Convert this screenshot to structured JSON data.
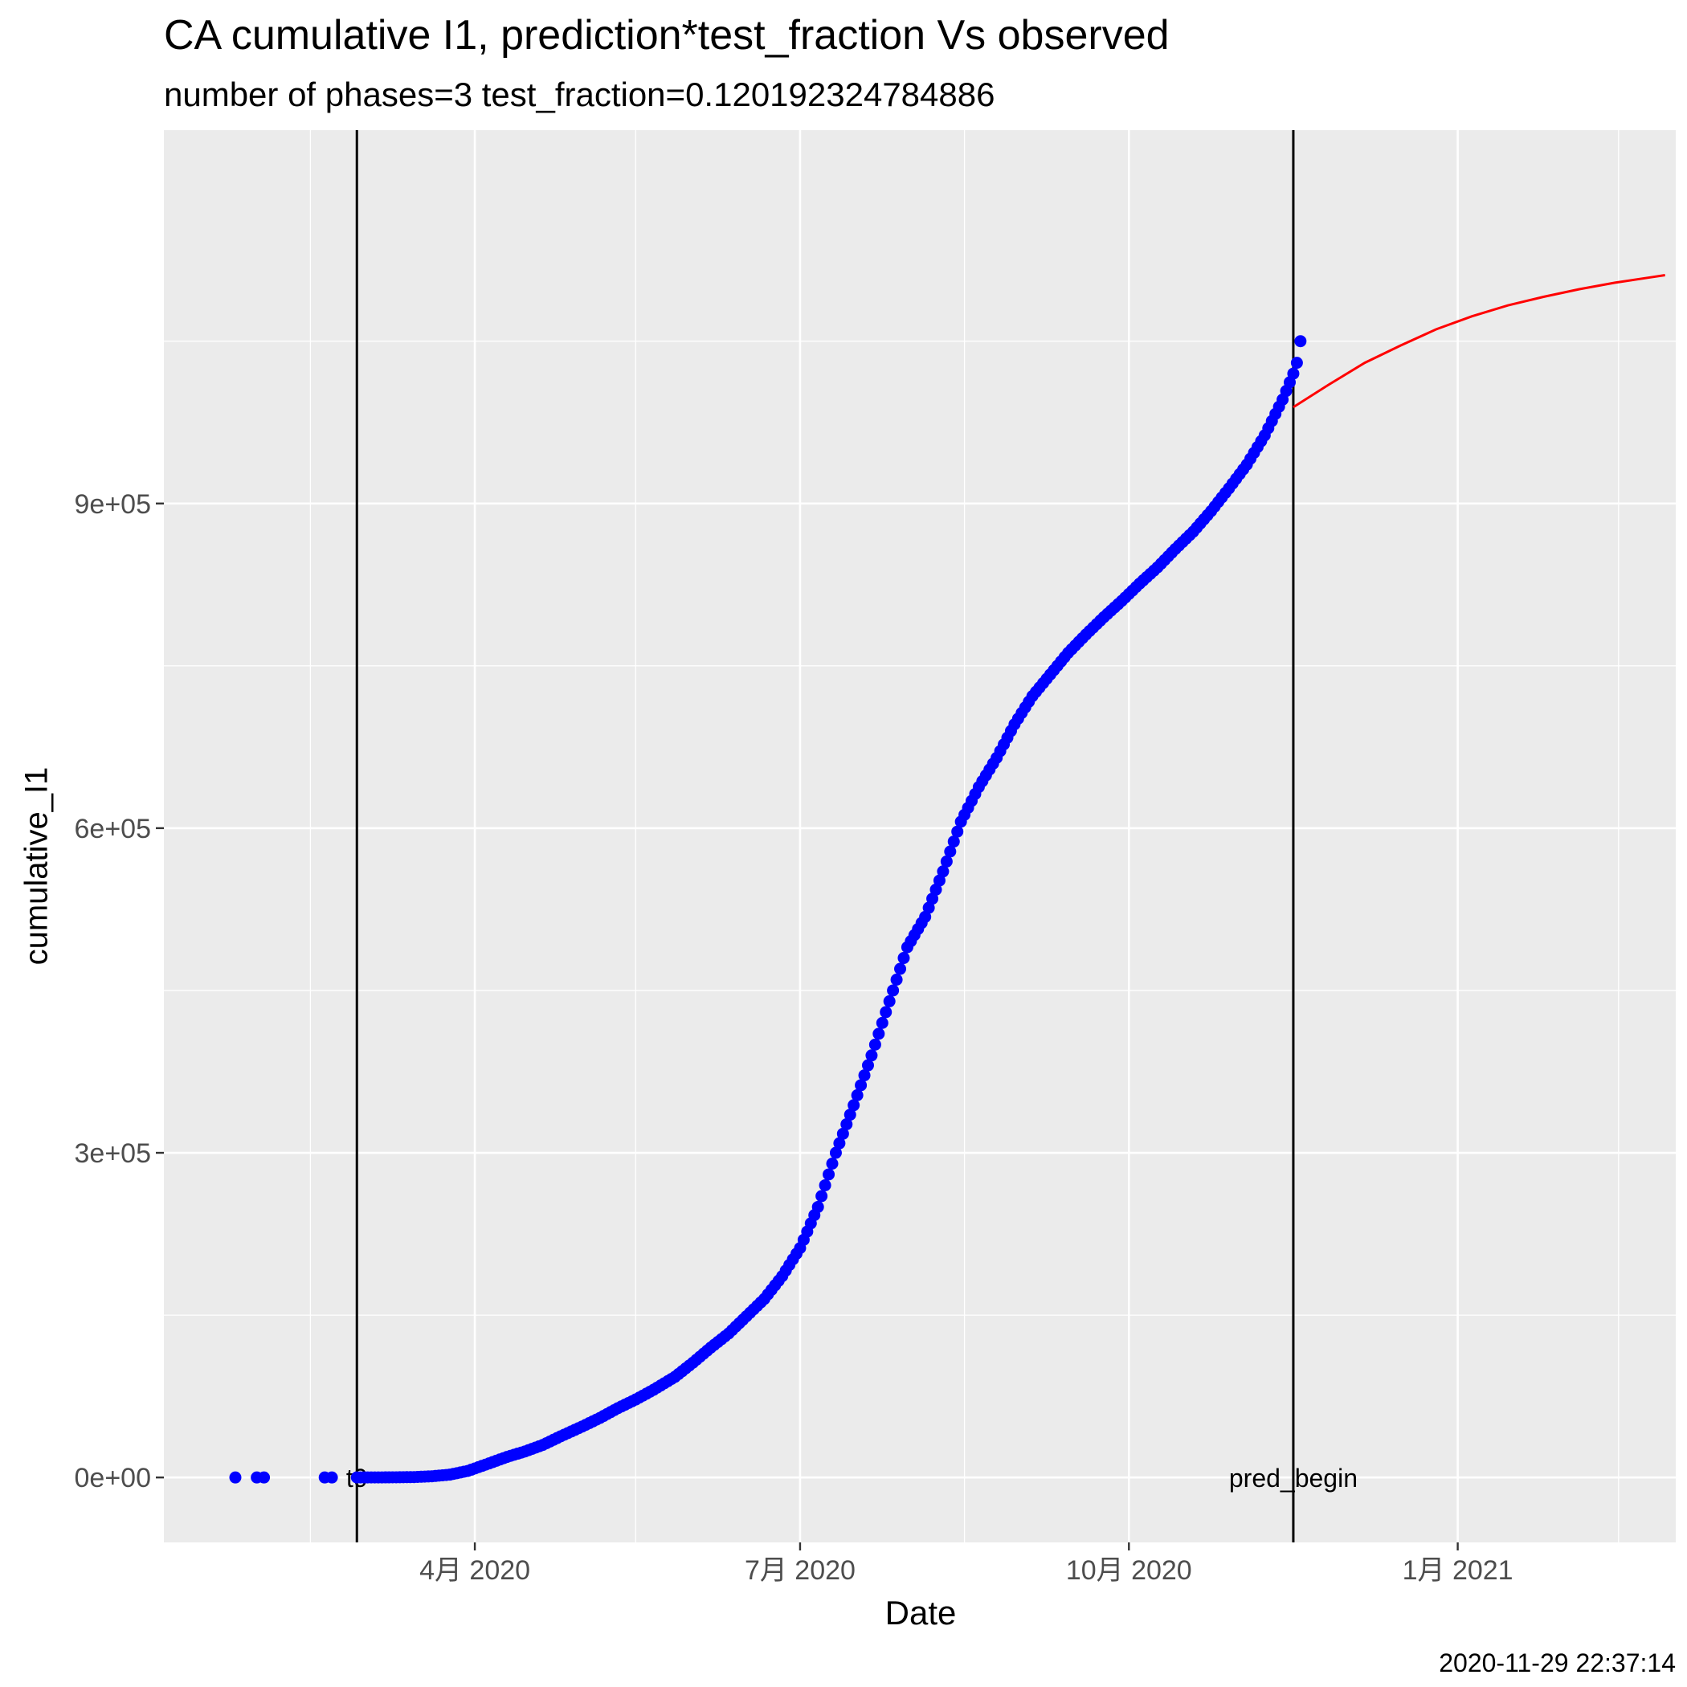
{
  "chart_data": {
    "type": "scatter",
    "title": "CA cumulative I1,  prediction*test_fraction Vs observed",
    "subtitle": "number of phases=3   test_fraction=0.120192324784886",
    "xlabel": "Date",
    "ylabel": "cumulative_I1",
    "caption": "2020-11-29 22:37:14",
    "xlim": [
      "2020-01-05",
      "2021-03-03"
    ],
    "ylim": [
      -60000,
      1245000
    ],
    "x_ticks": [
      {
        "date": "2020-04-01",
        "label": "4月 2020"
      },
      {
        "date": "2020-07-01",
        "label": "7月 2020"
      },
      {
        "date": "2020-10-01",
        "label": "10月 2020"
      },
      {
        "date": "2021-01-01",
        "label": "1月 2021"
      }
    ],
    "x_minor_gridlines": [
      "2020-02-15",
      "2020-05-16",
      "2020-08-16",
      "2020-11-16",
      "2021-02-15"
    ],
    "y_ticks": [
      {
        "value": 0,
        "label": "0e+00"
      },
      {
        "value": 300000,
        "label": "3e+05"
      },
      {
        "value": 600000,
        "label": "6e+05"
      },
      {
        "value": 900000,
        "label": "9e+05"
      }
    ],
    "y_minor_gridlines": [
      150000,
      450000,
      750000,
      1050000
    ],
    "vlines": [
      {
        "date": "2020-02-28",
        "label": "t0"
      },
      {
        "date": "2020-11-16",
        "label": "pred_begin"
      }
    ],
    "series": [
      {
        "kind": "points",
        "color": "#0000ff",
        "points": [
          [
            "2020-01-25",
            1
          ],
          [
            "2020-01-31",
            2
          ],
          [
            "2020-02-02",
            6
          ],
          [
            "2020-02-19",
            10
          ],
          [
            "2020-02-21",
            12
          ],
          [
            "2020-02-28",
            33
          ],
          [
            "2020-03-05",
            50
          ],
          [
            "2020-03-10",
            150
          ],
          [
            "2020-03-15",
            350
          ],
          [
            "2020-03-20",
            1100
          ],
          [
            "2020-03-25",
            2600
          ],
          [
            "2020-03-30",
            6000
          ],
          [
            "2020-04-05",
            13000
          ],
          [
            "2020-04-10",
            19000
          ],
          [
            "2020-04-15",
            24000
          ],
          [
            "2020-04-20",
            30000
          ],
          [
            "2020-04-25",
            38000
          ],
          [
            "2020-05-01",
            47000
          ],
          [
            "2020-05-06",
            55000
          ],
          [
            "2020-05-11",
            64000
          ],
          [
            "2020-05-16",
            72000
          ],
          [
            "2020-05-21",
            81000
          ],
          [
            "2020-05-27",
            93000
          ],
          [
            "2020-06-01",
            106000
          ],
          [
            "2020-06-06",
            120000
          ],
          [
            "2020-06-11",
            133000
          ],
          [
            "2020-06-16",
            149000
          ],
          [
            "2020-06-21",
            165000
          ],
          [
            "2020-06-26",
            186000
          ],
          [
            "2020-07-01",
            212000
          ],
          [
            "2020-07-06",
            250000
          ],
          [
            "2020-07-11",
            300000
          ],
          [
            "2020-07-16",
            344000
          ],
          [
            "2020-07-21",
            390000
          ],
          [
            "2020-07-26",
            440000
          ],
          [
            "2020-07-31",
            490000
          ],
          [
            "2020-08-05",
            518000
          ],
          [
            "2020-08-10",
            560000
          ],
          [
            "2020-08-15",
            606000
          ],
          [
            "2020-08-20",
            638000
          ],
          [
            "2020-08-25",
            665000
          ],
          [
            "2020-08-30",
            696000
          ],
          [
            "2020-09-04",
            722000
          ],
          [
            "2020-09-09",
            742000
          ],
          [
            "2020-09-14",
            762000
          ],
          [
            "2020-09-19",
            779000
          ],
          [
            "2020-09-24",
            795000
          ],
          [
            "2020-09-29",
            810000
          ],
          [
            "2020-10-04",
            826000
          ],
          [
            "2020-10-09",
            841000
          ],
          [
            "2020-10-14",
            858000
          ],
          [
            "2020-10-19",
            874000
          ],
          [
            "2020-10-24",
            893000
          ],
          [
            "2020-10-29",
            914000
          ],
          [
            "2020-11-03",
            936000
          ],
          [
            "2020-11-08",
            963000
          ],
          [
            "2020-11-13",
            996000
          ],
          [
            "2020-11-16",
            1020000
          ],
          [
            "2020-11-17",
            1030000
          ],
          [
            "2020-11-18",
            1050000
          ]
        ]
      },
      {
        "kind": "line",
        "color": "#ff0000",
        "points": [
          [
            "2020-11-16",
            989000
          ],
          [
            "2020-11-26",
            1010000
          ],
          [
            "2020-12-06",
            1030000
          ],
          [
            "2020-12-16",
            1046000
          ],
          [
            "2020-12-26",
            1061000
          ],
          [
            "2021-01-05",
            1073000
          ],
          [
            "2021-01-15",
            1083000
          ],
          [
            "2021-01-25",
            1091000
          ],
          [
            "2021-02-04",
            1098000
          ],
          [
            "2021-02-14",
            1104000
          ],
          [
            "2021-02-24",
            1109000
          ],
          [
            "2021-02-28",
            1111000
          ]
        ]
      }
    ],
    "grid": true,
    "panel_background": "#ebebeb",
    "gridline_color": "#ffffff"
  }
}
